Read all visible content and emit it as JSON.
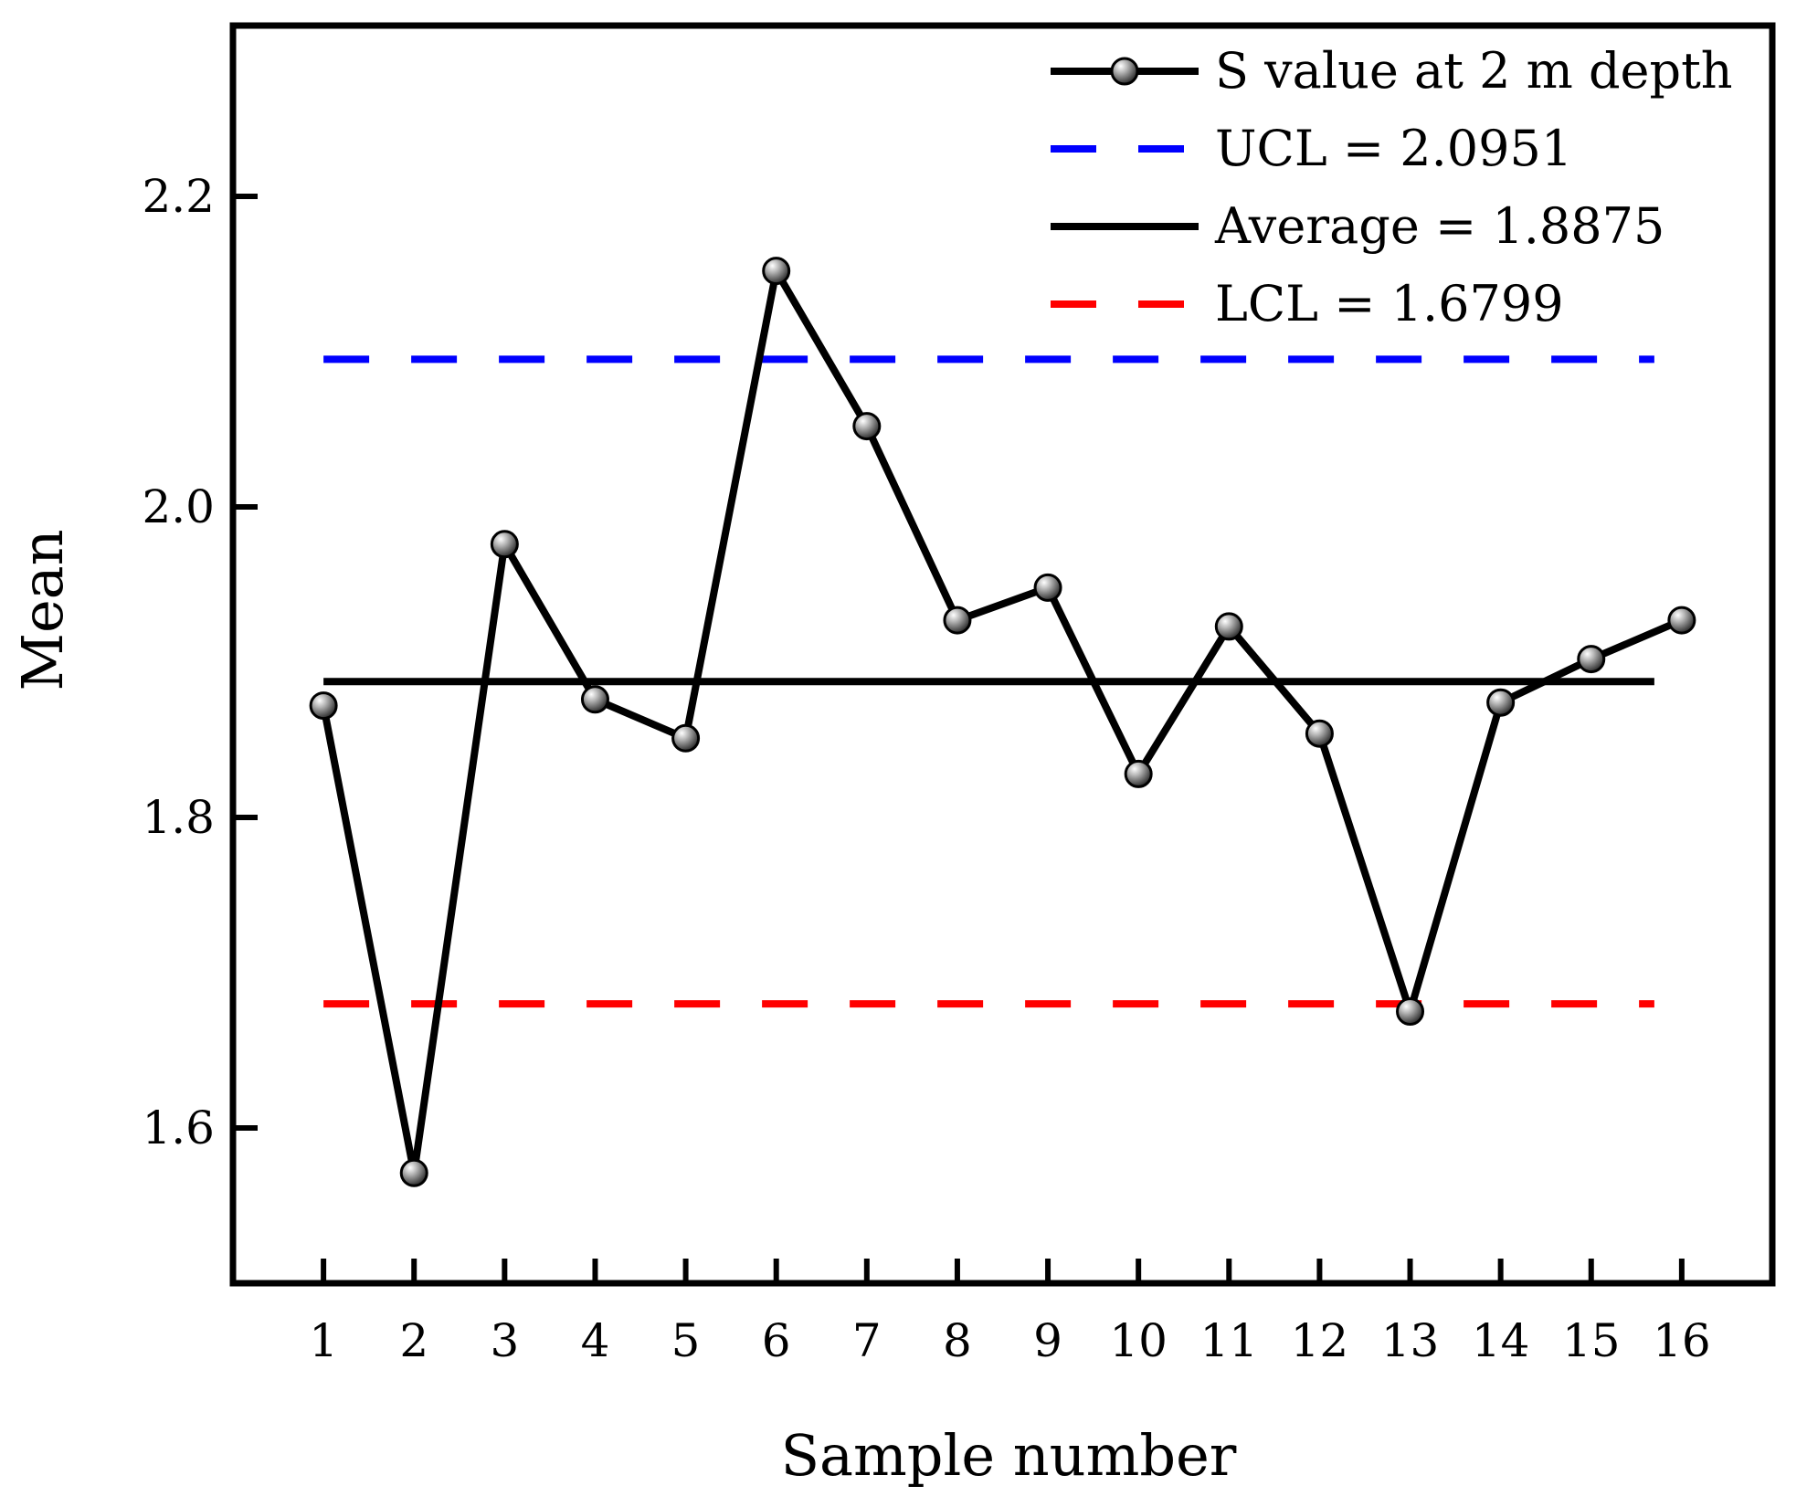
{
  "chart_data": {
    "type": "line",
    "title": "",
    "xlabel": "Sample number",
    "ylabel": "Mean",
    "xlim": [
      0,
      17
    ],
    "ylim": [
      1.5,
      2.31
    ],
    "x_ticks": [
      1,
      2,
      3,
      4,
      5,
      6,
      7,
      8,
      9,
      10,
      11,
      12,
      13,
      14,
      15,
      16
    ],
    "x_tick_labels": [
      "1",
      "2",
      "3",
      "4",
      "5",
      "6",
      "7",
      "8",
      "9",
      "10",
      "11",
      "12",
      "13",
      "14",
      "15",
      "16"
    ],
    "y_ticks": [
      1.6,
      1.8,
      2.0,
      2.2
    ],
    "y_tick_labels": [
      "1.6",
      "1.8",
      "2.0",
      "2.2"
    ],
    "grid": false,
    "legend_position": "top-right",
    "series": [
      {
        "name": "S value at 2 m depth",
        "x": [
          1,
          2,
          3,
          4,
          5,
          6,
          7,
          8,
          9,
          10,
          11,
          12,
          13,
          14,
          15,
          16
        ],
        "values": [
          1.872,
          1.571,
          1.976,
          1.876,
          1.851,
          2.152,
          2.052,
          1.927,
          1.948,
          1.828,
          1.923,
          1.854,
          1.675,
          1.874,
          1.902,
          1.927
        ],
        "color": "#000000"
      }
    ],
    "reference_lines": [
      {
        "name": "UCL",
        "label": "UCL = 2.0951",
        "value": 2.0951,
        "color": "#0000ff",
        "style": "dashed"
      },
      {
        "name": "Average",
        "label": "Average = 1.8875",
        "value": 1.8875,
        "color": "#000000",
        "style": "solid"
      },
      {
        "name": "LCL",
        "label": "LCL = 1.6799",
        "value": 1.6799,
        "color": "#ff0000",
        "style": "dashed"
      }
    ]
  }
}
